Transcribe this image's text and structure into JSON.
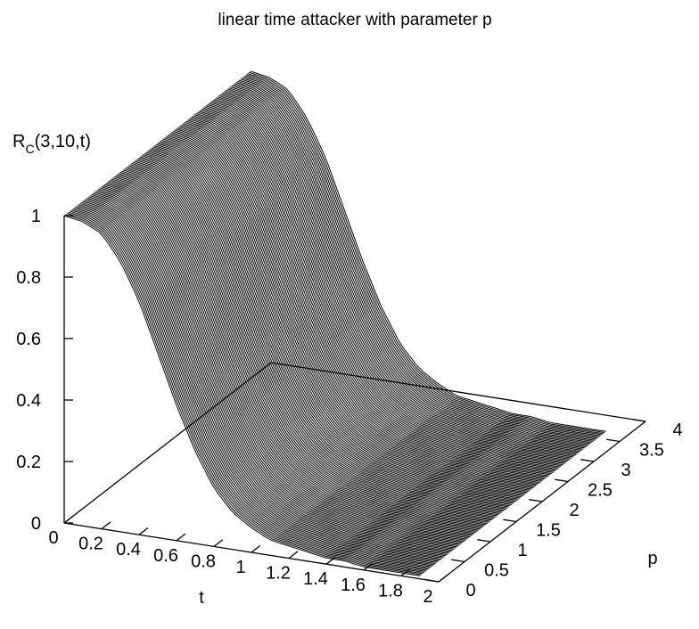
{
  "chart_data": {
    "type": "surface",
    "title": "linear time attacker with parameter p",
    "xlabel": "t",
    "ylabel": "p",
    "zlabel_main": "R",
    "zlabel_sub": "C",
    "zlabel_tail": "(3,10,t)",
    "xlim": [
      0,
      2
    ],
    "ylim": [
      0,
      4
    ],
    "zlim": [
      0,
      1
    ],
    "x_ticks": [
      "0",
      "0.2",
      "0.4",
      "0.6",
      "0.8",
      "1",
      "1.2",
      "1.4",
      "1.6",
      "1.8",
      "2"
    ],
    "y_ticks": [
      "0",
      "0.5",
      "1",
      "1.5",
      "2",
      "2.5",
      "3",
      "3.5",
      "4"
    ],
    "z_ticks": [
      "0",
      "0.2",
      "0.4",
      "0.6",
      "0.8",
      "1"
    ],
    "surface_t_range": [
      0,
      1.9
    ],
    "surface_p_range": [
      0,
      3.6
    ],
    "profile": {
      "t": [
        0,
        0.1,
        0.2,
        0.3,
        0.4,
        0.5,
        0.6,
        0.7,
        0.8,
        0.9,
        1.0,
        1.1,
        1.2,
        1.3,
        1.4,
        1.5,
        1.6,
        1.7,
        1.8,
        1.9
      ],
      "R": [
        1.0,
        0.99,
        0.96,
        0.88,
        0.76,
        0.6,
        0.44,
        0.3,
        0.19,
        0.12,
        0.08,
        0.05,
        0.04,
        0.03,
        0.02,
        0.02,
        0.01,
        0.01,
        0.01,
        0.01
      ]
    },
    "grid": false,
    "line_color": "#000000"
  }
}
